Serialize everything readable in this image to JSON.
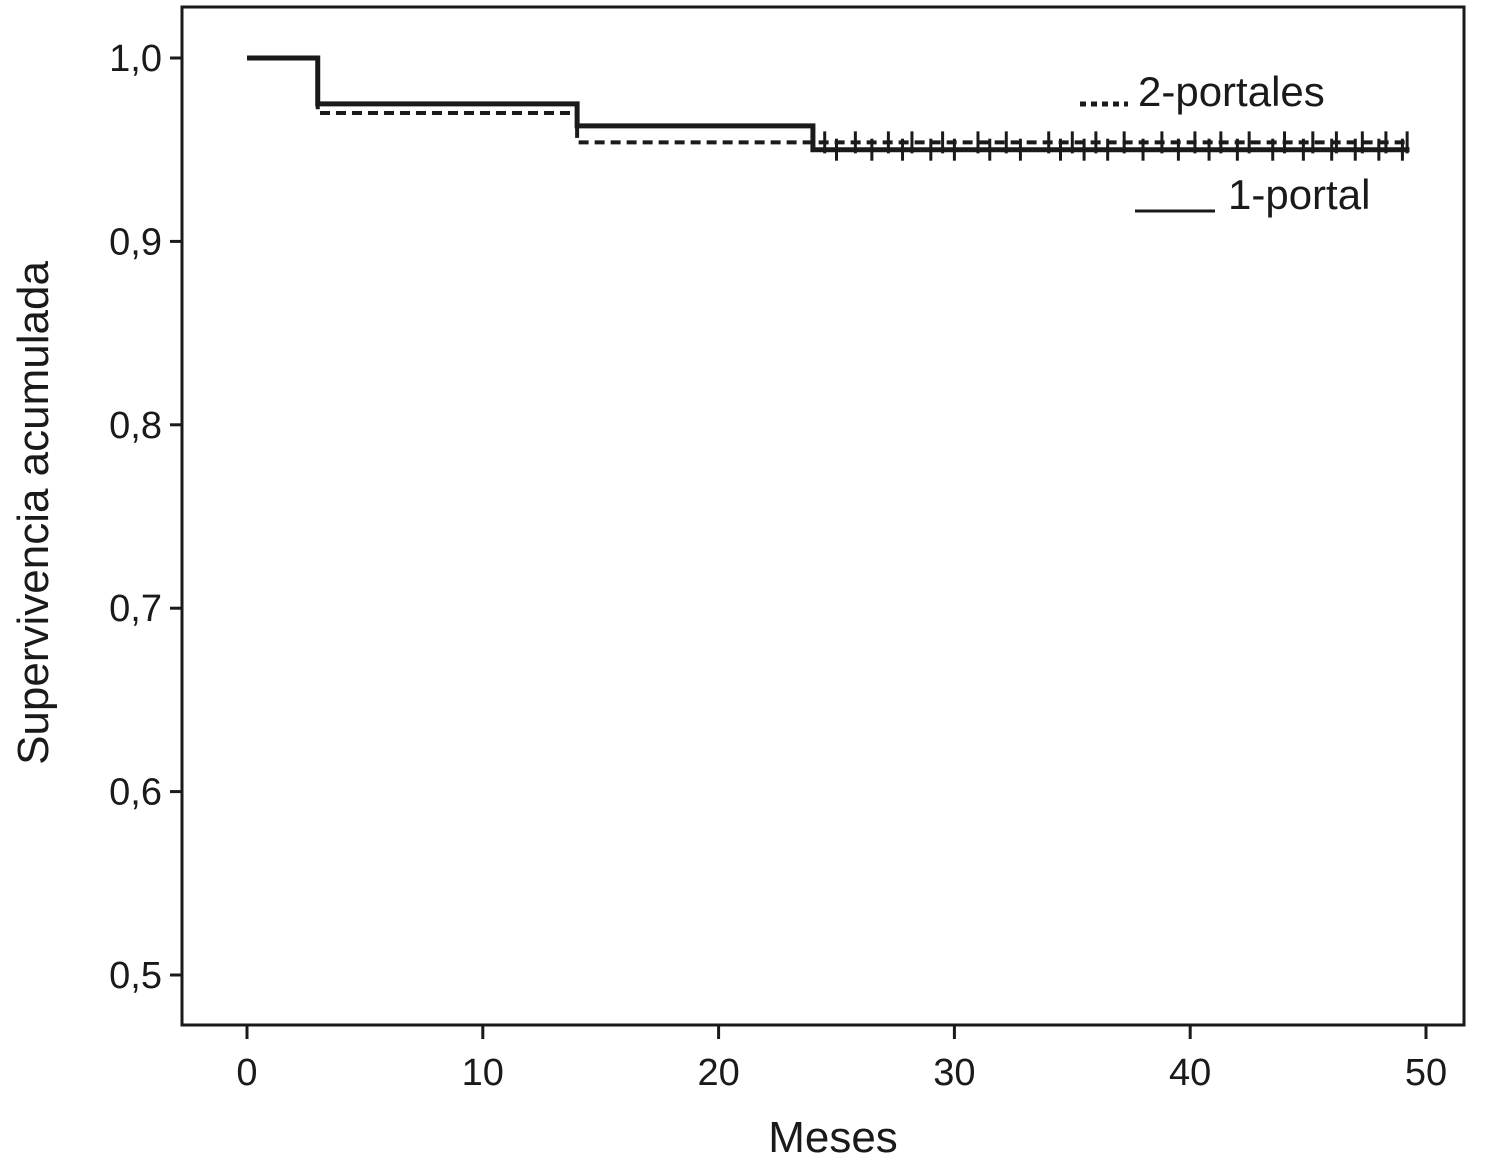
{
  "chart_data": {
    "type": "line",
    "subtype": "kaplan-meier-step",
    "title": "",
    "xlabel": "Meses",
    "ylabel": "Supervivencia acumulada",
    "xlim": [
      0,
      50
    ],
    "ylim": [
      0.5,
      1.0
    ],
    "x_ticks": [
      0,
      10,
      20,
      30,
      40,
      50
    ],
    "x_tick_labels": [
      "0",
      "10",
      "20",
      "30",
      "40",
      "50"
    ],
    "y_ticks": [
      0.5,
      0.6,
      0.7,
      0.8,
      0.9,
      1.0
    ],
    "y_tick_labels": [
      "0,5",
      "0,6",
      "0,7",
      "0,8",
      "0,9",
      "1,0"
    ],
    "grid": false,
    "legend_position": "top-right",
    "series": [
      {
        "name": "2-portales",
        "style": "dashed",
        "color": "#1a1a1a",
        "steps": [
          [
            0,
            1.0
          ],
          [
            3,
            0.97
          ],
          [
            14,
            0.954
          ],
          [
            24,
            0.954
          ],
          [
            49.3,
            0.954
          ]
        ],
        "censor_x": [
          24.5,
          25.8,
          27.2,
          28.2,
          29.5,
          31.0,
          32.2,
          34.0,
          35.0,
          36.0,
          37.2,
          38.8,
          40.2,
          41.3,
          42.5,
          44.0,
          45.2,
          46.2,
          47.3,
          48.3,
          49.2
        ]
      },
      {
        "name": "1-portal",
        "style": "solid",
        "color": "#1a1a1a",
        "steps": [
          [
            0,
            1.0
          ],
          [
            3,
            0.975
          ],
          [
            14,
            0.963
          ],
          [
            24,
            0.95
          ],
          [
            49.3,
            0.95
          ]
        ],
        "censor_x": [
          25.0,
          26.5,
          27.8,
          29.0,
          30.0,
          31.5,
          32.8,
          34.5,
          35.5,
          36.5,
          38.0,
          39.5,
          40.8,
          42.0,
          43.5,
          44.8,
          46.0,
          47.0,
          48.0,
          49.0
        ]
      }
    ]
  }
}
